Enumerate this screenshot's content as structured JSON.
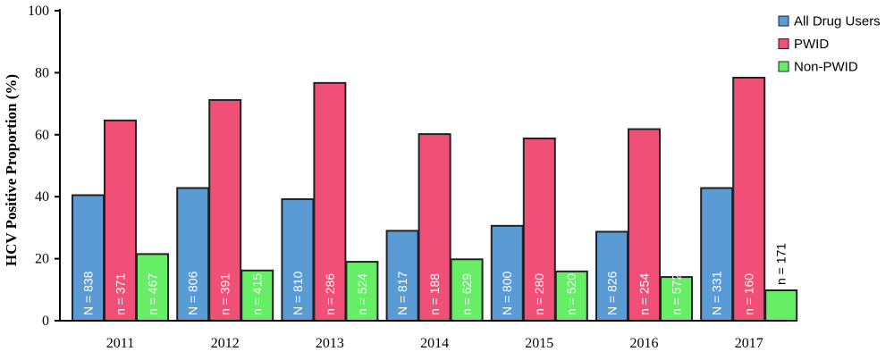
{
  "chart_data": {
    "type": "bar",
    "title": "",
    "xlabel": "",
    "ylabel": "HCV Positive Proportion (%)",
    "ylim": [
      0,
      100
    ],
    "yticks": [
      "0",
      "20",
      "40",
      "60",
      "80",
      "100"
    ],
    "grid": false,
    "legend_position": "top-right",
    "categories": [
      "2011",
      "2012",
      "2013",
      "2014",
      "2015",
      "2016",
      "2017"
    ],
    "series": [
      {
        "name": "All Drug Users",
        "color": "#5b9bd5",
        "values": [
          40.5,
          42.8,
          39.2,
          29.0,
          30.6,
          28.7,
          42.8
        ],
        "labels": [
          "N = 838",
          "N = 806",
          "N = 810",
          "N = 817",
          "N = 800",
          "N = 826",
          "N = 331"
        ]
      },
      {
        "name": "PWID",
        "color": "#f04f78",
        "values": [
          64.6,
          71.2,
          76.7,
          60.2,
          58.8,
          61.8,
          78.4
        ],
        "labels": [
          "n = 371",
          "n = 391",
          "n = 286",
          "n = 188",
          "n = 280",
          "n = 254",
          "n = 160"
        ]
      },
      {
        "name": "Non-PWID",
        "color": "#66ee66",
        "values": [
          21.5,
          16.2,
          19.0,
          19.8,
          15.9,
          14.1,
          9.8
        ],
        "labels": [
          "n = 467",
          "n = 415",
          "n = 524",
          "n = 629",
          "n = 520",
          "n = 572",
          "n = 171"
        ]
      }
    ]
  }
}
